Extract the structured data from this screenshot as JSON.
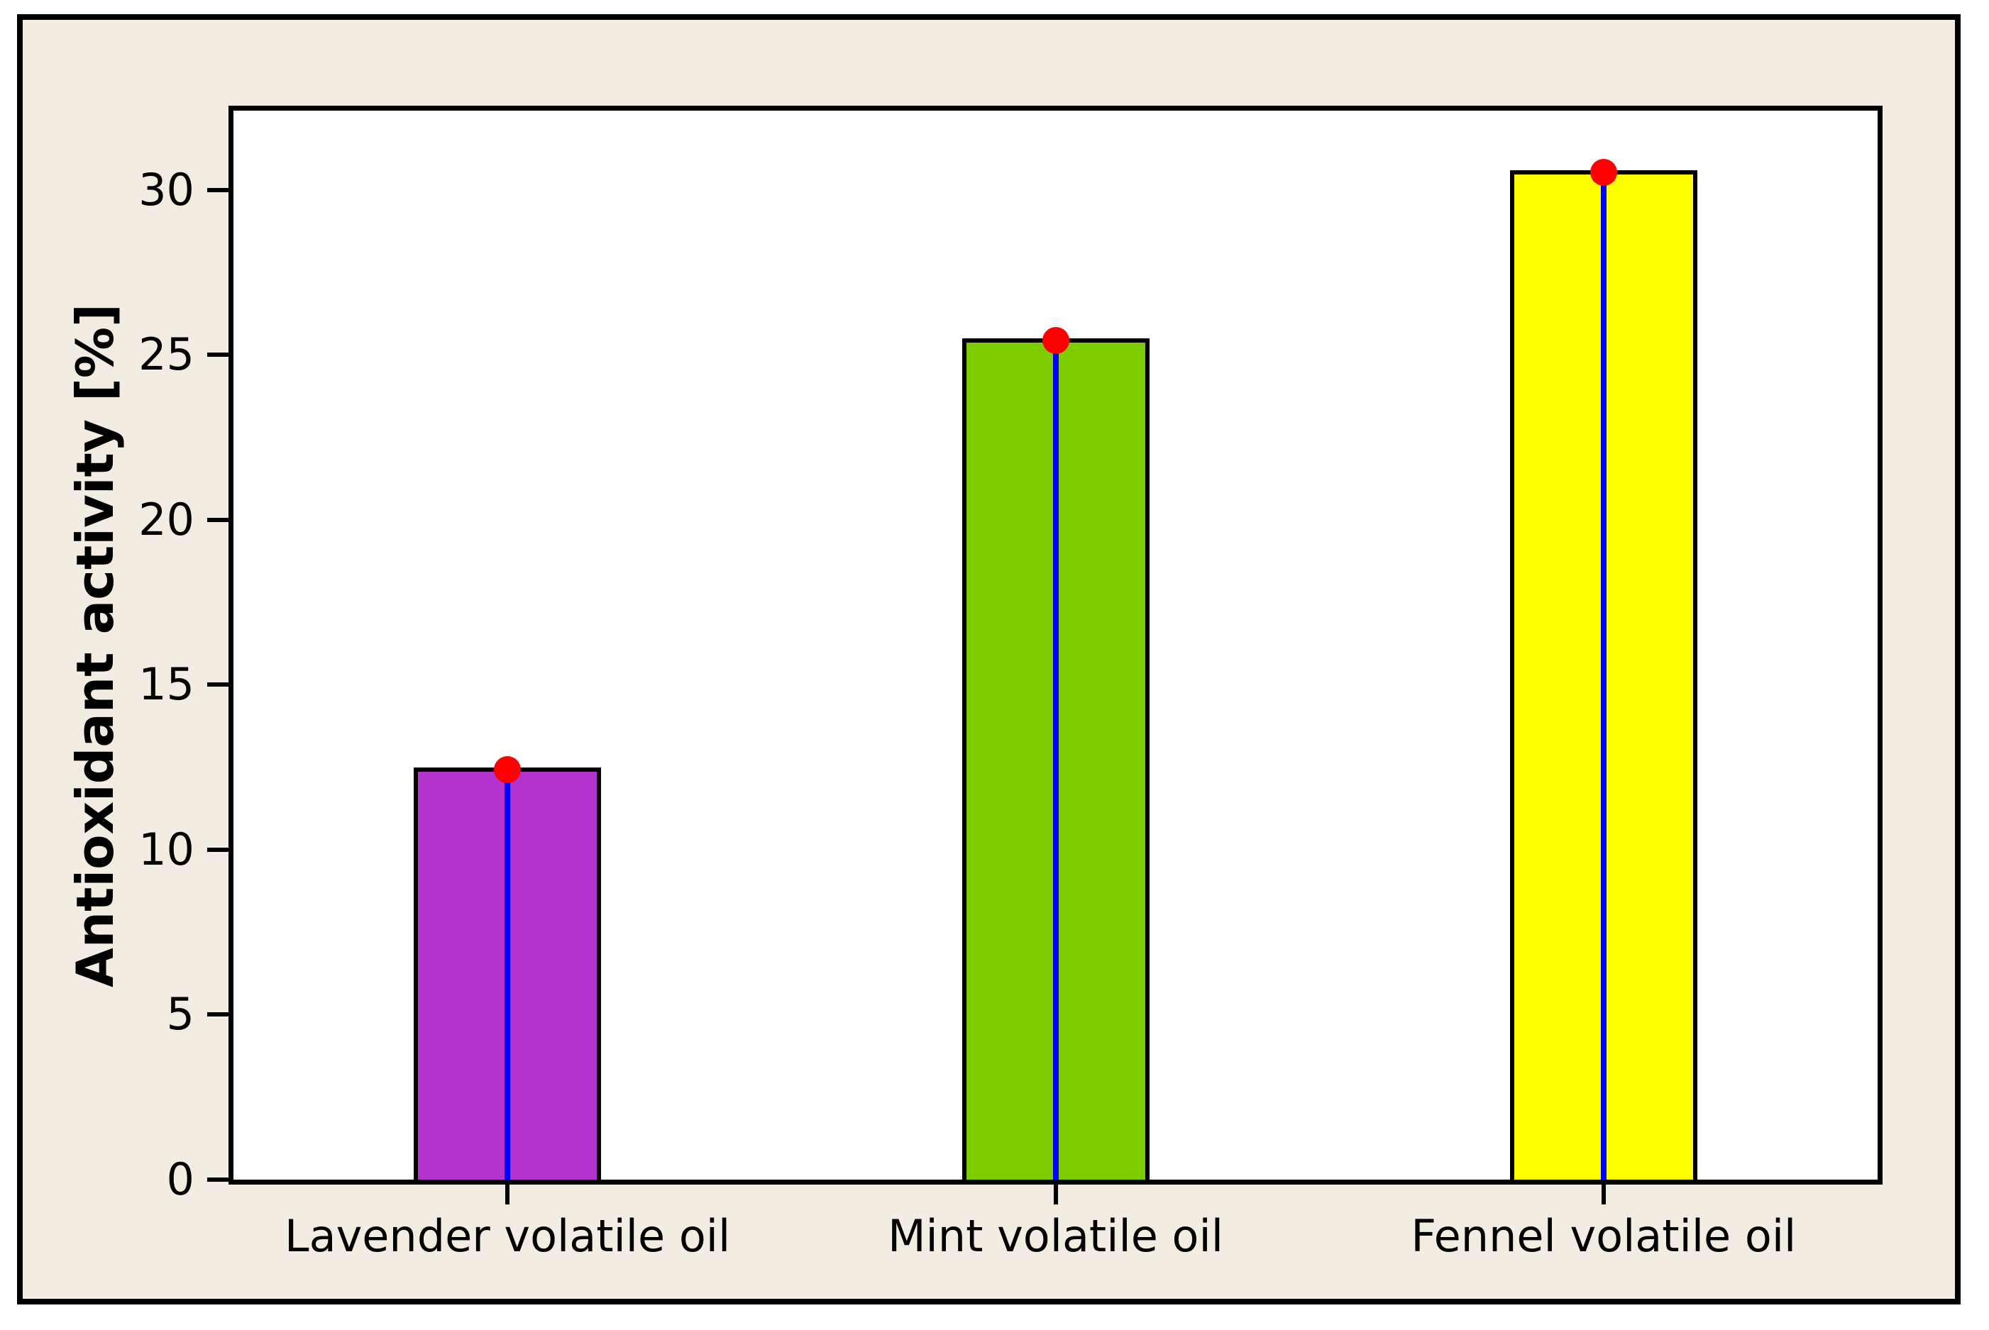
{
  "chart_data": {
    "type": "bar",
    "title": "",
    "xlabel": "",
    "ylabel": "Antioxidant activity [%]",
    "categories": [
      "Lavender volatile oil",
      "Mint volatile oil",
      "Fennel volatile oil"
    ],
    "values": [
      12.5,
      25.5,
      30.6
    ],
    "bar_colors": [
      "#B233CE",
      "#7CCC00",
      "#FFFF00"
    ],
    "bar_border_color": "#000000",
    "center_line_color": "#0000FF",
    "marker_shape": "circle",
    "marker_color": "#FF0000",
    "yticks": [
      0,
      5,
      10,
      15,
      20,
      25,
      30
    ],
    "ylim": [
      0,
      32.4
    ],
    "grid": false,
    "legend": false,
    "background_color": "#F2ECE2",
    "plot_background_color": "#FFFFFF",
    "frame_border_color": "#000000"
  }
}
